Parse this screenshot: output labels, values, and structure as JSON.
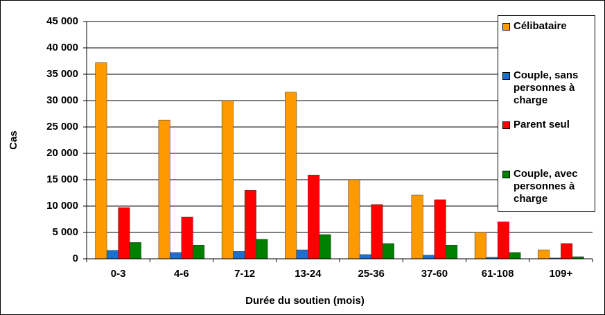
{
  "chart_data": {
    "type": "bar",
    "x_label": "Durée du soutien (mois)",
    "y_label": "Cas",
    "categories": [
      "0-3",
      "4-6",
      "7-12",
      "13-24",
      "25-36",
      "37-60",
      "61-108",
      "109+"
    ],
    "series": [
      {
        "name": "Célibataire",
        "color": "#ff9900",
        "values": [
          37200,
          26300,
          30000,
          31600,
          15000,
          12100,
          5000,
          1700
        ]
      },
      {
        "name": "Couple, sans personnes à charge",
        "color": "#1f6fce",
        "values": [
          1600,
          1200,
          1400,
          1700,
          800,
          700,
          300,
          150
        ]
      },
      {
        "name": "Parent seul",
        "color": "#ff0000",
        "values": [
          9700,
          7900,
          13000,
          15900,
          10300,
          11200,
          7000,
          2900
        ]
      },
      {
        "name": "Couple, avec personnes à charge",
        "color": "#008000",
        "values": [
          3100,
          2600,
          3700,
          4600,
          2900,
          2600,
          1200,
          400
        ]
      }
    ],
    "ylim": [
      0,
      45000
    ],
    "yticks": [
      0,
      {
        "value": 5000,
        "label": "5 000"
      },
      {
        "value": 10000,
        "label": "10 000"
      },
      {
        "value": 15000,
        "label": "15 000"
      },
      {
        "value": 20000,
        "label": "20 000"
      },
      {
        "value": 25000,
        "label": "25 000"
      },
      {
        "value": 30000,
        "label": "30 000"
      },
      {
        "value": 35000,
        "label": "35 000"
      },
      {
        "value": 40000,
        "label": "40 000"
      },
      {
        "value": 45000,
        "label": "45 000"
      }
    ],
    "grid": true
  }
}
